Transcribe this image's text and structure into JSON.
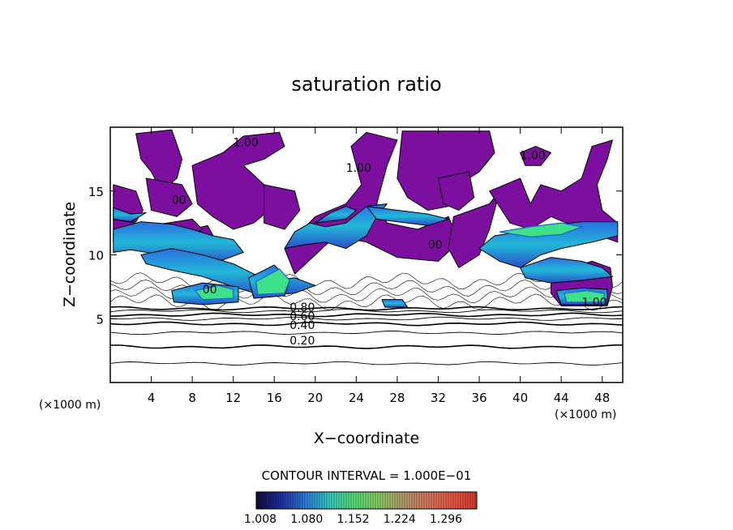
{
  "chart_data": {
    "type": "heatmap",
    "title": "saturation ratio",
    "xlabel": "X−coordinate",
    "ylabel": "Z−coordinate",
    "x_unit_left": "(×1000 m)",
    "x_unit_right": "(×1000 m)",
    "xlim": [
      0,
      50
    ],
    "ylim": [
      0,
      20
    ],
    "x_ticks": [
      4,
      8,
      12,
      16,
      20,
      24,
      28,
      32,
      36,
      40,
      44,
      48
    ],
    "y_ticks": [
      5,
      10,
      15
    ],
    "grid": false,
    "contour_interval_label": "CONTOUR INTERVAL = 1.000E−01",
    "colorbar": {
      "min": 1.008,
      "max": 1.35,
      "tick_values": [
        1.008,
        1.08,
        1.152,
        1.224,
        1.296
      ],
      "tick_labels": [
        "1.008",
        "1.080",
        "1.152",
        "1.224",
        "1.296"
      ],
      "colors": [
        "#140a3c",
        "#1f2fa0",
        "#2f7fe0",
        "#36d0c0",
        "#5be07a",
        "#8cd066",
        "#b8a070",
        "#d87a60",
        "#f05a48",
        "#d83a30"
      ]
    },
    "fill_color": "#7d0fa0",
    "contour_levels": [
      0.1,
      0.2,
      0.3,
      0.4,
      0.5,
      0.6,
      0.7,
      0.8,
      0.9,
      1.0
    ],
    "contour_labels": [
      {
        "text": "0.20",
        "x": 17.5,
        "z": 3.0
      },
      {
        "text": "0.40",
        "x": 17.5,
        "z": 4.2
      },
      {
        "text": "0.60",
        "x": 17.5,
        "z": 4.9
      },
      {
        "text": "0.80",
        "x": 17.5,
        "z": 5.6
      },
      {
        "text": "1.00",
        "x": 46.0,
        "z": 6.0
      },
      {
        "text": "00",
        "x": 6.0,
        "z": 14.0
      },
      {
        "text": "00",
        "x": 9.0,
        "z": 7.0
      },
      {
        "text": "1.00",
        "x": 12.0,
        "z": 18.5
      },
      {
        "text": "1.00",
        "x": 23.0,
        "z": 16.5
      },
      {
        "text": "00",
        "x": 31.0,
        "z": 10.5
      },
      {
        "text": "1.00",
        "x": 40.0,
        "z": 17.5
      }
    ],
    "background_contours_z": [
      1.5,
      2.8,
      3.9,
      4.6,
      5.0,
      5.3,
      5.6,
      5.8
    ],
    "saturated_regions": [
      {
        "kind": "purple",
        "points": [
          [
            2.5,
            19.5
          ],
          [
            6,
            19.8
          ],
          [
            7,
            17.5
          ],
          [
            6.5,
            16
          ],
          [
            5,
            15
          ],
          [
            4,
            16.5
          ],
          [
            3,
            17.5
          ]
        ]
      },
      {
        "kind": "purple",
        "points": [
          [
            0.3,
            15.5
          ],
          [
            2.5,
            15
          ],
          [
            3.2,
            13.5
          ],
          [
            2.5,
            12.6
          ],
          [
            0.3,
            12.8
          ]
        ]
      },
      {
        "kind": "purple",
        "points": [
          [
            3.5,
            16
          ],
          [
            7,
            15.5
          ],
          [
            8,
            14
          ],
          [
            6.5,
            13
          ],
          [
            4,
            13.5
          ]
        ]
      },
      {
        "kind": "purple",
        "points": [
          [
            8,
            17
          ],
          [
            11,
            18
          ],
          [
            13,
            19.3
          ],
          [
            16.5,
            19.6
          ],
          [
            17,
            18.5
          ],
          [
            15,
            17.5
          ],
          [
            13,
            17
          ],
          [
            15,
            15.5
          ],
          [
            15.5,
            13.5
          ],
          [
            14,
            12.5
          ],
          [
            12,
            12
          ],
          [
            10,
            13
          ],
          [
            8.5,
            14
          ]
        ]
      },
      {
        "kind": "purple",
        "points": [
          [
            8,
            12
          ],
          [
            9.5,
            12.3
          ],
          [
            10.5,
            10.8
          ],
          [
            9.5,
            9.8
          ],
          [
            8,
            10.3
          ]
        ]
      },
      {
        "kind": "purple",
        "points": [
          [
            15,
            15.5
          ],
          [
            18,
            15
          ],
          [
            18.5,
            13.5
          ],
          [
            17,
            12
          ],
          [
            15,
            12.5
          ]
        ]
      },
      {
        "kind": "purple",
        "points": [
          [
            17,
            10.5
          ],
          [
            20,
            13
          ],
          [
            23,
            14
          ],
          [
            24.5,
            15.5
          ],
          [
            23.5,
            18.5
          ],
          [
            25,
            19.6
          ],
          [
            28,
            19
          ],
          [
            27,
            17
          ],
          [
            26,
            14
          ],
          [
            27,
            12.5
          ],
          [
            30,
            12
          ],
          [
            33,
            13
          ],
          [
            34,
            11
          ],
          [
            32,
            9.5
          ],
          [
            28,
            9.8
          ],
          [
            25,
            11
          ],
          [
            22,
            11.5
          ],
          [
            20,
            10
          ],
          [
            18,
            8.5
          ]
        ]
      },
      {
        "kind": "purple",
        "points": [
          [
            28,
            16
          ],
          [
            28.5,
            19.7
          ],
          [
            37,
            19.7
          ],
          [
            37.5,
            18
          ],
          [
            36,
            16.5
          ],
          [
            34,
            15.5
          ],
          [
            33,
            13.8
          ],
          [
            31,
            13.5
          ],
          [
            29,
            14.5
          ]
        ]
      },
      {
        "kind": "purple",
        "points": [
          [
            32,
            16
          ],
          [
            35,
            16.5
          ],
          [
            35.5,
            14.5
          ],
          [
            34,
            13.5
          ],
          [
            32.5,
            14
          ]
        ]
      },
      {
        "kind": "purple",
        "points": [
          [
            33.5,
            13
          ],
          [
            37,
            14
          ],
          [
            38,
            15
          ],
          [
            37,
            12
          ],
          [
            36,
            10
          ],
          [
            34,
            9
          ],
          [
            33,
            10.5
          ]
        ]
      },
      {
        "kind": "purple",
        "points": [
          [
            37,
            15
          ],
          [
            40,
            16
          ],
          [
            41,
            14
          ],
          [
            42,
            15.5
          ],
          [
            44,
            15
          ],
          [
            46,
            16
          ],
          [
            47,
            18.5
          ],
          [
            49,
            19
          ],
          [
            48.5,
            17.5
          ],
          [
            47.5,
            15.5
          ],
          [
            48,
            13.5
          ],
          [
            49.5,
            12.5
          ],
          [
            49.5,
            11
          ],
          [
            46,
            12
          ],
          [
            43,
            13
          ],
          [
            41,
            12
          ],
          [
            39,
            12.5
          ]
        ]
      },
      {
        "kind": "purple",
        "points": [
          [
            40,
            18
          ],
          [
            41.5,
            18.5
          ],
          [
            43,
            18
          ],
          [
            42,
            17
          ],
          [
            40.5,
            17
          ]
        ]
      },
      {
        "kind": "purple",
        "points": [
          [
            43,
            8.5
          ],
          [
            47,
            9.5
          ],
          [
            48.8,
            9
          ],
          [
            49,
            7.5
          ],
          [
            48.5,
            6
          ],
          [
            44,
            6
          ],
          [
            43,
            7
          ]
        ]
      },
      {
        "kind": "purple",
        "points": [
          [
            0.3,
            12.8
          ],
          [
            4,
            12.3
          ],
          [
            8,
            12.8
          ],
          [
            9,
            12
          ],
          [
            7,
            11
          ],
          [
            3,
            10.8
          ],
          [
            0.3,
            11
          ]
        ]
      },
      {
        "kind": "moist",
        "points": [
          [
            0.3,
            12
          ],
          [
            3,
            12.6
          ],
          [
            6,
            12.4
          ],
          [
            8,
            12
          ],
          [
            10,
            11.5
          ],
          [
            12,
            11.2
          ],
          [
            13,
            10.2
          ],
          [
            11,
            9.6
          ],
          [
            8,
            9.3
          ],
          [
            5,
            10
          ],
          [
            2,
            10.4
          ],
          [
            0.3,
            10.2
          ]
        ]
      },
      {
        "kind": "moist",
        "points": [
          [
            3,
            10
          ],
          [
            6,
            10.5
          ],
          [
            9,
            10
          ],
          [
            12,
            9.3
          ],
          [
            14,
            8.5
          ],
          [
            16,
            8
          ],
          [
            18,
            8.2
          ],
          [
            20,
            7.6
          ],
          [
            18,
            7
          ],
          [
            15,
            6.8
          ],
          [
            12,
            7.5
          ],
          [
            9,
            8.3
          ],
          [
            6,
            8.8
          ],
          [
            3.5,
            9.3
          ]
        ]
      },
      {
        "kind": "moist",
        "points": [
          [
            6,
            7.2
          ],
          [
            9,
            7.8
          ],
          [
            12.5,
            7.5
          ],
          [
            12.5,
            6.3
          ],
          [
            9,
            6.1
          ],
          [
            6.2,
            6.3
          ]
        ]
      },
      {
        "kind": "moist",
        "points": [
          [
            13.5,
            8.2
          ],
          [
            16,
            9.2
          ],
          [
            17.5,
            8
          ],
          [
            17,
            6.8
          ],
          [
            14,
            6.6
          ]
        ]
      },
      {
        "kind": "moist",
        "points": [
          [
            17,
            10.5
          ],
          [
            19,
            10.8
          ],
          [
            21,
            11
          ],
          [
            23,
            10.5
          ],
          [
            25,
            11.5
          ],
          [
            26,
            13
          ],
          [
            27,
            14
          ],
          [
            25,
            13.8
          ],
          [
            23,
            12.5
          ],
          [
            21,
            12.2
          ],
          [
            19.5,
            12.5
          ],
          [
            18,
            11.8
          ]
        ]
      },
      {
        "kind": "moist",
        "points": [
          [
            20,
            12.5
          ],
          [
            21.5,
            13.3
          ],
          [
            23,
            13.8
          ],
          [
            24,
            13.5
          ],
          [
            23,
            12.8
          ]
        ]
      },
      {
        "kind": "moist",
        "points": [
          [
            25,
            13.8
          ],
          [
            28,
            13.5
          ],
          [
            31,
            13.2
          ],
          [
            33,
            12.8
          ],
          [
            31,
            12.3
          ],
          [
            28,
            12.6
          ],
          [
            26,
            12.8
          ]
        ]
      },
      {
        "kind": "moist",
        "points": [
          [
            26.5,
            6.5
          ],
          [
            28.5,
            6.5
          ],
          [
            29,
            5.9
          ],
          [
            26.8,
            5.9
          ]
        ]
      },
      {
        "kind": "moist",
        "points": [
          [
            36,
            10.5
          ],
          [
            38,
            9.5
          ],
          [
            40,
            9
          ],
          [
            42,
            10
          ],
          [
            44,
            10.5
          ],
          [
            47,
            11
          ],
          [
            49.5,
            11.5
          ],
          [
            49.5,
            12.6
          ],
          [
            46,
            12.6
          ],
          [
            43,
            12.3
          ],
          [
            40,
            11.8
          ],
          [
            37.5,
            11.5
          ]
        ]
      },
      {
        "kind": "moist",
        "points": [
          [
            40,
            9
          ],
          [
            43,
            9.8
          ],
          [
            46,
            9.5
          ],
          [
            48,
            9
          ],
          [
            49,
            8.3
          ],
          [
            46,
            8
          ],
          [
            43,
            7.8
          ],
          [
            40.5,
            8.2
          ]
        ]
      },
      {
        "kind": "moist",
        "points": [
          [
            43.5,
            7.2
          ],
          [
            46,
            7.4
          ],
          [
            48.5,
            7.3
          ],
          [
            48.5,
            6.1
          ],
          [
            44,
            6.1
          ]
        ]
      },
      {
        "kind": "moist",
        "points": [
          [
            0.3,
            13.7
          ],
          [
            2,
            13.2
          ],
          [
            3.5,
            13.3
          ],
          [
            2,
            12.6
          ],
          [
            0.3,
            12.8
          ]
        ]
      }
    ],
    "core_regions": [
      {
        "kind": "green",
        "points": [
          [
            14.2,
            7.9
          ],
          [
            16.5,
            8.9
          ],
          [
            17.5,
            8
          ],
          [
            17,
            7
          ],
          [
            14.4,
            6.9
          ]
        ]
      },
      {
        "kind": "green",
        "points": [
          [
            8.3,
            7.2
          ],
          [
            10.5,
            7.6
          ],
          [
            12,
            7.3
          ],
          [
            12,
            6.6
          ],
          [
            9,
            6.5
          ]
        ]
      },
      {
        "kind": "green",
        "points": [
          [
            44.3,
            7
          ],
          [
            46.5,
            7.2
          ],
          [
            48.2,
            7
          ],
          [
            48.2,
            6.3
          ],
          [
            44.5,
            6.3
          ]
        ]
      },
      {
        "kind": "green",
        "points": [
          [
            38,
            11.8
          ],
          [
            41,
            12.2
          ],
          [
            44,
            12.5
          ],
          [
            46,
            12.2
          ],
          [
            44,
            11.6
          ],
          [
            41,
            11.4
          ]
        ]
      }
    ]
  }
}
